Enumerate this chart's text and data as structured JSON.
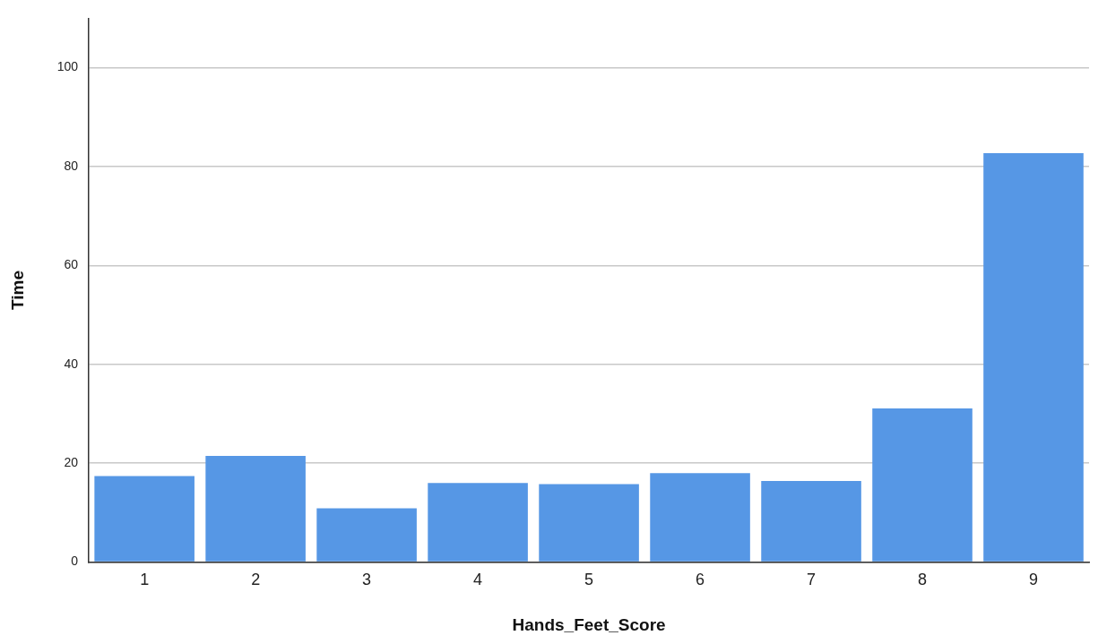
{
  "chart_data": {
    "type": "bar",
    "xlabel": "Hands_Feet_Score",
    "ylabel": "Time",
    "categories": [
      "1",
      "2",
      "3",
      "4",
      "5",
      "6",
      "7",
      "8",
      "9"
    ],
    "values": [
      17.4,
      21.5,
      10.9,
      16.0,
      15.8,
      18.0,
      16.4,
      31.1,
      82.7
    ],
    "color": "#5697e5",
    "ylim": [
      0,
      110
    ],
    "yticks": [
      0,
      20,
      40,
      60,
      80,
      100
    ],
    "grid": "y"
  }
}
